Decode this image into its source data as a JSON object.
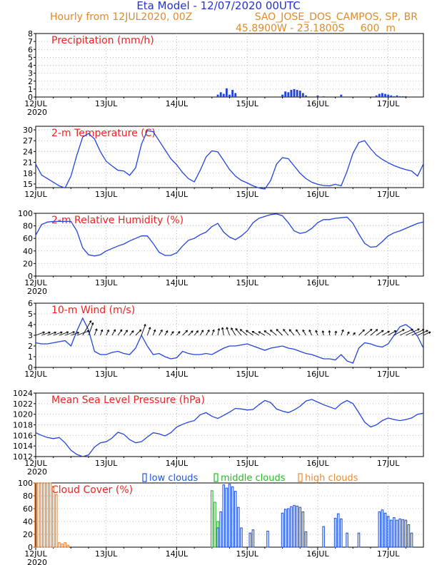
{
  "header": {
    "title": "Eta Model - 12/07/2020 00UTC",
    "line2_left": "Hourly from 12JUL2020, 00Z",
    "line2_right": "SAO_JOSE_DOS_CAMPOS, SP, BR",
    "line3": "45.8900W - 23.1800S     600  m"
  },
  "colors": {
    "title_blue": "#2233cc",
    "header_orange": "#e08a2a",
    "panel_title_red": "#ee2222",
    "line_blue": "#2244dd",
    "low_clouds": "#2255dd",
    "middle_clouds": "#22bb22",
    "high_clouds": "#ee8833",
    "grid": "#aaaaaa"
  },
  "x_axis": {
    "tick_labels": [
      "12JUL",
      "13JUL",
      "14JUL",
      "15JUL",
      "16JUL",
      "17JUL"
    ],
    "tick_hours": [
      0,
      24,
      48,
      72,
      96,
      120
    ],
    "year_label": "2020",
    "hour_range": [
      0,
      132
    ]
  },
  "chart_data": [
    {
      "id": "precip",
      "type": "bar",
      "title": "Precipitation (mm/h)",
      "ylim": [
        0,
        8
      ],
      "yticks": [
        0,
        1,
        2,
        3,
        4,
        5,
        6,
        7,
        8
      ],
      "x": [
        62,
        63,
        64,
        65,
        66,
        67,
        68,
        84,
        85,
        86,
        87,
        88,
        89,
        90,
        91,
        92,
        96,
        98,
        104,
        116,
        117,
        118,
        119,
        120,
        121,
        122,
        123,
        124,
        125,
        126
      ],
      "values": [
        0.3,
        0.6,
        0.4,
        1.1,
        0.3,
        0.9,
        0.5,
        0.3,
        0.7,
        0.6,
        0.9,
        1.0,
        0.9,
        0.8,
        0.5,
        0.2,
        0.2,
        0.1,
        0.3,
        0.2,
        0.4,
        0.5,
        0.4,
        0.3,
        0.2,
        0.1,
        0.2,
        0.1,
        0.1,
        0.1
      ],
      "show_year": true
    },
    {
      "id": "temp",
      "type": "line",
      "title": "2-m Temperature (C)",
      "ylim": [
        14,
        31
      ],
      "yticks": [
        15,
        18,
        21,
        24,
        27,
        30
      ],
      "x": [
        0,
        2,
        4,
        6,
        8,
        10,
        12,
        14,
        16,
        18,
        20,
        22,
        24,
        26,
        28,
        30,
        32,
        34,
        36,
        38,
        40,
        42,
        44,
        46,
        48,
        50,
        52,
        54,
        56,
        58,
        60,
        62,
        64,
        66,
        68,
        70,
        72,
        74,
        76,
        78,
        80,
        82,
        84,
        86,
        88,
        90,
        92,
        94,
        96,
        98,
        100,
        102,
        104,
        106,
        108,
        110,
        112,
        114,
        116,
        118,
        120,
        122,
        124,
        126,
        128,
        130,
        132
      ],
      "values": [
        20.5,
        17.5,
        16.5,
        15.5,
        14.5,
        13.9,
        17.2,
        23.0,
        28.0,
        29.0,
        27.5,
        24.0,
        21.3,
        20.0,
        18.8,
        18.6,
        17.4,
        19.5,
        26.0,
        29.8,
        29.5,
        27.0,
        24.5,
        22.0,
        20.3,
        18.2,
        16.5,
        15.6,
        18.8,
        22.5,
        24.2,
        23.9,
        21.5,
        19.0,
        17.2,
        16.0,
        15.3,
        14.5,
        13.9,
        13.6,
        16.0,
        20.5,
        22.3,
        22.0,
        20.0,
        18.0,
        16.5,
        15.5,
        14.9,
        14.6,
        14.5,
        14.9,
        14.5,
        18.5,
        23.5,
        26.5,
        27.0,
        24.8,
        23.0,
        21.8,
        20.9,
        20.1,
        19.5,
        19.0,
        18.6,
        17.2,
        20.6
      ],
      "show_year": false
    },
    {
      "id": "rh",
      "type": "line",
      "title": "2-m Relative Humidity (%)",
      "ylim": [
        0,
        100
      ],
      "yticks": [
        0,
        20,
        40,
        60,
        80,
        100
      ],
      "x": [
        0,
        2,
        4,
        6,
        8,
        10,
        12,
        14,
        16,
        18,
        20,
        22,
        24,
        26,
        28,
        30,
        32,
        34,
        36,
        38,
        40,
        42,
        44,
        46,
        48,
        50,
        52,
        54,
        56,
        58,
        60,
        62,
        64,
        66,
        68,
        70,
        72,
        74,
        76,
        78,
        80,
        82,
        84,
        86,
        88,
        90,
        92,
        94,
        96,
        98,
        100,
        102,
        104,
        106,
        108,
        110,
        112,
        114,
        116,
        118,
        120,
        122,
        124,
        126,
        128,
        130,
        132
      ],
      "values": [
        65,
        82,
        86,
        87,
        87,
        87,
        87,
        72,
        45,
        34,
        32,
        34,
        40,
        44,
        48,
        51,
        56,
        60,
        64,
        64,
        52,
        38,
        33,
        33,
        37,
        48,
        57,
        60,
        66,
        70,
        79,
        84,
        70,
        62,
        58,
        64,
        72,
        85,
        92,
        95,
        98,
        99,
        96,
        85,
        72,
        68,
        70,
        76,
        85,
        90,
        90,
        92,
        93,
        94,
        84,
        67,
        52,
        46,
        47,
        55,
        64,
        69,
        72,
        76,
        80,
        84,
        86
      ],
      "show_year": true
    },
    {
      "id": "wind",
      "type": "line",
      "title": "10-m Wind (m/s)",
      "ylim": [
        0,
        6
      ],
      "yticks": [
        0,
        1,
        2,
        3,
        4,
        5,
        6
      ],
      "x": [
        0,
        2,
        4,
        6,
        8,
        10,
        12,
        14,
        16,
        18,
        20,
        22,
        24,
        26,
        28,
        30,
        32,
        34,
        36,
        38,
        40,
        42,
        44,
        46,
        48,
        50,
        52,
        54,
        56,
        58,
        60,
        62,
        64,
        66,
        68,
        70,
        72,
        74,
        76,
        78,
        80,
        82,
        84,
        86,
        88,
        90,
        92,
        94,
        96,
        98,
        100,
        102,
        104,
        106,
        108,
        110,
        112,
        114,
        116,
        118,
        120,
        122,
        124,
        126,
        128,
        130,
        132
      ],
      "values": [
        2.3,
        2.2,
        2.2,
        2.3,
        2.4,
        2.5,
        2.0,
        3.4,
        4.6,
        3.5,
        1.5,
        1.2,
        1.2,
        1.4,
        1.5,
        1.3,
        1.2,
        1.8,
        3.0,
        2.0,
        1.2,
        1.3,
        1.0,
        0.8,
        0.9,
        1.5,
        1.3,
        1.2,
        1.2,
        1.3,
        1.2,
        1.5,
        1.8,
        2.0,
        2.0,
        2.1,
        2.2,
        2.0,
        1.8,
        1.6,
        1.8,
        1.9,
        2.0,
        1.8,
        1.7,
        1.5,
        1.3,
        1.2,
        1.0,
        0.8,
        0.8,
        0.7,
        1.2,
        0.6,
        0.4,
        1.8,
        2.3,
        2.2,
        2.0,
        1.9,
        2.2,
        3.0,
        3.8,
        4.0,
        3.6,
        2.9,
        1.8
      ],
      "wind_dir_deg": [
        250,
        250,
        250,
        250,
        250,
        250,
        250,
        250,
        210,
        200,
        200,
        200,
        205,
        210,
        215,
        215,
        220,
        225,
        200,
        200,
        200,
        210,
        210,
        215,
        220,
        225,
        225,
        220,
        210,
        210,
        200,
        190,
        170,
        160,
        150,
        140,
        130,
        125,
        120,
        120,
        125,
        130,
        135,
        140,
        140,
        145,
        150,
        155,
        160,
        170,
        180,
        190,
        200,
        210,
        220,
        225,
        230,
        230,
        235,
        240,
        240,
        240,
        245,
        245,
        245,
        245,
        245
      ],
      "show_year": false
    },
    {
      "id": "mslp",
      "type": "line",
      "title": "Mean Sea Level Pressure (hPa)",
      "ylim": [
        1012,
        1024
      ],
      "yticks": [
        1012,
        1014,
        1016,
        1018,
        1020,
        1022,
        1024
      ],
      "x": [
        0,
        2,
        4,
        6,
        8,
        10,
        12,
        14,
        16,
        18,
        20,
        22,
        24,
        26,
        28,
        30,
        32,
        34,
        36,
        38,
        40,
        42,
        44,
        46,
        48,
        50,
        52,
        54,
        56,
        58,
        60,
        62,
        64,
        66,
        68,
        70,
        72,
        74,
        76,
        78,
        80,
        82,
        84,
        86,
        88,
        90,
        92,
        94,
        96,
        98,
        100,
        102,
        104,
        106,
        108,
        110,
        112,
        114,
        116,
        118,
        120,
        122,
        124,
        126,
        128,
        130,
        132
      ],
      "values": [
        1016.5,
        1016.0,
        1015.6,
        1015.4,
        1015.6,
        1014.6,
        1013.2,
        1012.4,
        1012.0,
        1012.3,
        1013.8,
        1014.6,
        1014.8,
        1015.5,
        1016.6,
        1016.2,
        1015.2,
        1014.6,
        1014.8,
        1015.7,
        1016.5,
        1016.3,
        1015.9,
        1016.5,
        1017.6,
        1018.1,
        1018.5,
        1018.8,
        1019.9,
        1020.3,
        1019.6,
        1019.2,
        1019.8,
        1020.4,
        1021.1,
        1021.0,
        1020.8,
        1020.9,
        1021.8,
        1022.6,
        1022.2,
        1021.0,
        1020.6,
        1020.3,
        1020.8,
        1021.5,
        1022.5,
        1022.8,
        1022.3,
        1021.8,
        1021.4,
        1021.0,
        1022.0,
        1022.6,
        1022.0,
        1020.3,
        1018.5,
        1017.6,
        1018.0,
        1018.8,
        1019.3,
        1019.0,
        1018.8,
        1019.0,
        1019.3,
        1020.0,
        1020.2
      ],
      "show_year": true
    },
    {
      "id": "cloud",
      "type": "bar",
      "title": "Cloud Cover (%)",
      "ylim": [
        0,
        100
      ],
      "yticks": [
        0,
        20,
        40,
        60,
        80,
        100
      ],
      "legend": [
        "low clouds",
        "middle clouds",
        "high clouds"
      ],
      "series": [
        {
          "name": "high clouds",
          "x": [
            0,
            1,
            2,
            3,
            4,
            5,
            6,
            7,
            8,
            9,
            10,
            11
          ],
          "values": [
            100,
            100,
            100,
            100,
            100,
            100,
            95,
            82,
            7,
            5,
            7,
            3
          ]
        },
        {
          "name": "middle clouds",
          "x": [
            60,
            61,
            62
          ],
          "values": [
            88,
            70,
            40
          ]
        },
        {
          "name": "low clouds",
          "x": [
            62,
            63,
            64,
            65,
            66,
            67,
            68,
            69,
            70,
            73,
            74,
            79,
            84,
            85,
            86,
            87,
            88,
            89,
            90,
            91,
            92,
            98,
            102,
            103,
            104,
            106,
            110,
            117,
            118,
            119,
            120,
            121,
            122,
            123,
            124,
            125,
            126,
            127,
            128
          ],
          "values": [
            30,
            55,
            97,
            92,
            98,
            94,
            87,
            62,
            30,
            22,
            27,
            25,
            53,
            59,
            60,
            63,
            65,
            64,
            62,
            55,
            24,
            32,
            45,
            52,
            44,
            22,
            22,
            55,
            58,
            53,
            48,
            42,
            46,
            42,
            44,
            43,
            42,
            35,
            22
          ]
        }
      ],
      "show_year": true
    }
  ]
}
